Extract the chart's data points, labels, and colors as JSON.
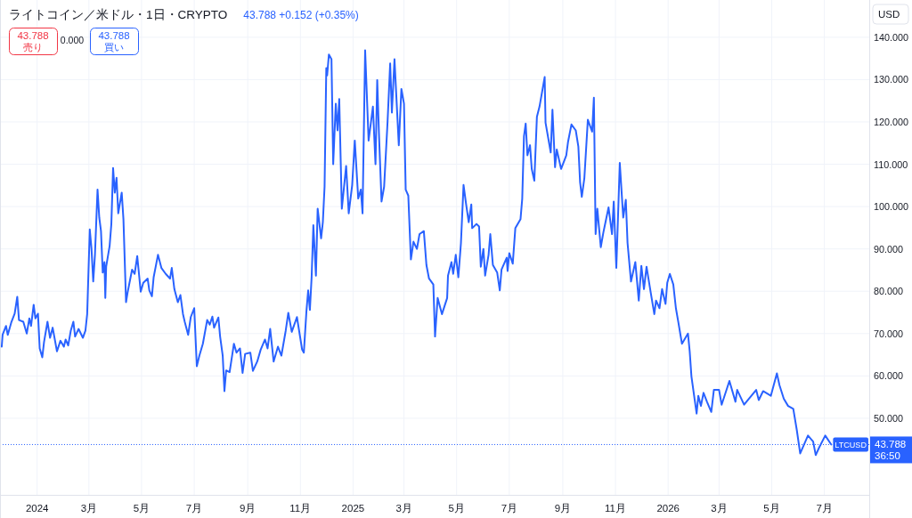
{
  "chart_data": {
    "type": "line",
    "title": "ライトコイン／米ドル・1日・CRYPTO",
    "subtitle": "43.788 +0.152 (+0.35%)",
    "ylabel": "USD",
    "annotations": [
      "43.788",
      "売り",
      "0.000",
      "43.788",
      "買い",
      "36:50"
    ],
    "x": [
      "2023-11-21",
      "2023-11-22",
      "2023-11-26",
      "2023-11-28",
      "2023-12-02",
      "2023-12-06",
      "2023-12-09",
      "2023-12-11",
      "2023-12-16",
      "2023-12-20",
      "2023-12-23",
      "2023-12-25",
      "2023-12-28",
      "2023-12-30",
      "2024-01-02",
      "2024-01-04",
      "2024-01-07",
      "2024-01-09",
      "2024-01-13",
      "2024-01-16",
      "2024-01-19",
      "2024-01-24",
      "2024-01-28",
      "2024-02-01",
      "2024-02-03",
      "2024-02-06",
      "2024-02-09",
      "2024-02-12",
      "2024-02-14",
      "2024-02-18",
      "2024-02-23",
      "2024-02-26",
      "2024-02-28",
      "2024-03-02",
      "2024-03-04",
      "2024-03-06",
      "2024-03-08",
      "2024-03-11",
      "2024-03-13",
      "2024-03-15",
      "2024-03-17",
      "2024-03-19",
      "2024-03-20",
      "2024-03-21",
      "2024-03-25",
      "2024-03-27",
      "2024-03-29",
      "2024-03-31",
      "2024-04-02",
      "2024-04-04",
      "2024-04-08",
      "2024-04-10",
      "2024-04-13",
      "2024-04-15",
      "2024-04-20",
      "2024-04-23",
      "2024-04-26",
      "2024-04-30",
      "2024-05-03",
      "2024-05-08",
      "2024-05-10",
      "2024-05-13",
      "2024-05-15",
      "2024-05-20",
      "2024-05-24",
      "2024-05-29",
      "2024-06-03",
      "2024-06-05",
      "2024-06-08",
      "2024-06-12",
      "2024-06-15",
      "2024-06-18",
      "2024-06-20",
      "2024-06-24",
      "2024-06-27",
      "2024-07-01",
      "2024-07-04",
      "2024-07-07",
      "2024-07-11",
      "2024-07-16",
      "2024-07-19",
      "2024-07-22",
      "2024-07-24",
      "2024-07-29",
      "2024-07-31",
      "2024-08-03",
      "2024-08-05",
      "2024-08-07",
      "2024-08-11",
      "2024-08-16",
      "2024-08-19",
      "2024-08-23",
      "2024-08-26",
      "2024-08-29",
      "2024-09-04",
      "2024-09-07",
      "2024-09-12",
      "2024-09-16",
      "2024-09-21",
      "2024-09-24",
      "2024-09-27",
      "2024-10-01",
      "2024-10-06",
      "2024-10-10",
      "2024-10-15",
      "2024-10-18",
      "2024-10-22",
      "2024-10-28",
      "2024-11-03",
      "2024-11-05",
      "2024-11-08",
      "2024-11-10",
      "2024-11-12",
      "2024-11-14",
      "2024-11-16",
      "2024-11-19",
      "2024-11-21",
      "2024-11-25",
      "2024-11-27",
      "2024-11-29",
      "2024-12-01",
      "2024-12-02",
      "2024-12-04",
      "2024-12-07",
      "2024-12-09",
      "2024-12-12",
      "2024-12-14",
      "2024-12-16",
      "2024-12-19",
      "2024-12-24",
      "2024-12-27",
      "2024-12-31",
      "2025-01-03",
      "2025-01-07",
      "2025-01-10",
      "2025-01-12",
      "2025-01-15",
      "2025-01-19",
      "2025-01-21",
      "2025-01-24",
      "2025-01-27",
      "2025-01-29",
      "2025-01-31",
      "2025-02-03",
      "2025-02-06",
      "2025-02-10",
      "2025-02-13",
      "2025-02-15",
      "2025-02-18",
      "2025-02-23",
      "2025-02-26",
      "2025-03-01",
      "2025-03-03",
      "2025-03-06",
      "2025-03-09",
      "2025-03-12",
      "2025-03-16",
      "2025-03-19",
      "2025-03-24",
      "2025-03-27",
      "2025-03-30",
      "2025-04-04",
      "2025-04-06",
      "2025-04-09",
      "2025-04-14",
      "2025-04-20",
      "2025-04-21",
      "2025-04-25",
      "2025-04-27",
      "2025-04-30",
      "2025-05-03",
      "2025-05-06",
      "2025-05-09",
      "2025-05-12",
      "2025-05-15",
      "2025-05-18",
      "2025-05-19",
      "2025-05-24",
      "2025-05-27",
      "2025-05-29",
      "2025-06-01",
      "2025-06-03",
      "2025-06-07",
      "2025-06-09",
      "2025-06-12",
      "2025-06-17",
      "2025-06-20",
      "2025-06-22",
      "2025-06-28",
      "2025-06-29",
      "2025-07-01",
      "2025-07-05",
      "2025-07-08",
      "2025-07-14",
      "2025-07-16",
      "2025-07-18",
      "2025-07-20",
      "2025-07-22",
      "2025-07-25",
      "2025-07-27",
      "2025-07-30",
      "2025-08-02",
      "2025-08-05",
      "2025-08-11",
      "2025-08-12",
      "2025-08-18",
      "2025-08-20",
      "2025-08-23",
      "2025-08-25",
      "2025-08-30",
      "2025-09-05",
      "2025-09-07",
      "2025-09-11",
      "2025-09-16",
      "2025-09-19",
      "2025-09-21",
      "2025-09-23",
      "2025-09-26",
      "2025-09-30",
      "2025-10-05",
      "2025-10-07",
      "2025-10-09",
      "2025-10-11",
      "2025-10-15",
      "2025-10-18",
      "2025-10-24",
      "2025-10-28",
      "2025-10-30",
      "2025-11-02",
      "2025-11-06",
      "2025-11-10",
      "2025-11-13",
      "2025-11-15",
      "2025-11-19",
      "2025-11-24",
      "2025-11-28",
      "2025-12-01",
      "2025-12-04",
      "2025-12-07",
      "2025-12-12",
      "2025-12-16",
      "2025-12-18",
      "2025-12-22",
      "2025-12-25",
      "2025-12-29",
      "2025-12-31",
      "2026-01-03",
      "2026-01-07",
      "2026-01-10",
      "2026-01-13",
      "2026-01-17",
      "2026-01-24",
      "2026-01-26",
      "2026-01-28",
      "2026-02-03",
      "2026-02-05",
      "2026-02-08",
      "2026-02-11",
      "2026-02-15",
      "2026-02-20",
      "2026-02-23",
      "2026-03-01",
      "2026-03-04",
      "2026-03-13",
      "2026-03-20",
      "2026-03-22",
      "2026-03-30",
      "2026-04-13",
      "2026-04-16",
      "2026-04-21",
      "2026-04-30",
      "2026-05-07",
      "2026-05-10",
      "2026-05-15",
      "2026-05-20",
      "2026-05-26",
      "2026-05-30",
      "2026-06-03",
      "2026-06-12",
      "2026-06-18",
      "2026-06-21",
      "2026-06-25",
      "2026-07-02",
      "2026-07-09"
    ],
    "series": [
      {
        "name": "LTCUSD",
        "color": "#2962ff",
        "values": [
          66.9,
          69.7,
          71.8,
          69.7,
          72.6,
          74.7,
          78.7,
          73.2,
          72.8,
          70.0,
          73.6,
          71.8,
          76.8,
          73.6,
          74.7,
          66.5,
          64.4,
          68.0,
          72.8,
          69.0,
          71.4,
          65.8,
          68.3,
          66.9,
          68.6,
          67.2,
          70.7,
          72.8,
          69.3,
          71.1,
          69.0,
          70.7,
          74.6,
          94.6,
          90.0,
          82.3,
          88.6,
          104.0,
          97.4,
          94.2,
          84.4,
          86.9,
          78.4,
          85.8,
          90.7,
          95.9,
          109.1,
          103.3,
          106.8,
          98.4,
          103.3,
          97.0,
          77.4,
          79.9,
          85.1,
          84.1,
          88.3,
          79.9,
          82.0,
          83.0,
          80.2,
          78.8,
          83.3,
          88.6,
          85.5,
          84.1,
          83.0,
          85.5,
          80.5,
          77.4,
          79.1,
          74.6,
          72.8,
          69.7,
          73.9,
          76.0,
          62.3,
          64.8,
          67.6,
          73.2,
          72.1,
          74.0,
          71.4,
          73.8,
          69.3,
          64.8,
          56.4,
          61.3,
          60.9,
          67.6,
          65.5,
          66.5,
          60.7,
          65.2,
          65.5,
          61.2,
          63.4,
          66.2,
          68.6,
          66.5,
          71.1,
          63.4,
          66.9,
          64.8,
          70.7,
          74.9,
          70.4,
          73.9,
          66.2,
          65.5,
          75.3,
          80.2,
          75.6,
          83.3,
          95.6,
          83.7,
          99.5,
          92.5,
          96.3,
          104.7,
          132.7,
          131.0,
          135.9,
          134.8,
          110.0,
          124.3,
          118.0,
          125.4,
          99.5,
          109.6,
          98.4,
          105.1,
          115.6,
          101.9,
          104.0,
          98.4,
          136.9,
          115.6,
          118.7,
          123.6,
          110.0,
          129.9,
          117.3,
          101.2,
          104.7,
          120.1,
          133.8,
          122.2,
          134.8,
          114.5,
          127.8,
          124.3,
          104.0,
          102.6,
          87.5,
          91.7,
          90.0,
          93.5,
          94.2,
          86.2,
          83.0,
          81.6,
          69.3,
          78.4,
          74.6,
          78.4,
          83.7,
          86.9,
          84.1,
          88.6,
          83.3,
          91.4,
          105.1,
          100.5,
          96.3,
          100.5,
          94.9,
          95.9,
          95.3,
          85.8,
          90.0,
          83.7,
          88.6,
          93.5,
          86.2,
          84.4,
          80.2,
          85.1,
          87.9,
          84.8,
          89.0,
          86.5,
          94.9,
          97.0,
          101.9,
          116.6,
          119.6,
          112.1,
          114.5,
          108.9,
          106.1,
          121.2,
          123.6,
          130.6,
          119.8,
          112.8,
          122.9,
          109.3,
          113.5,
          108.9,
          112.1,
          115.2,
          119.4,
          118.0,
          114.2,
          105.8,
          102.3,
          106.8,
          120.5,
          117.7,
          125.7,
          93.5,
          99.5,
          90.4,
          93.9,
          99.8,
          93.5,
          101.2,
          85.5,
          110.3,
          97.4,
          101.6,
          91.4,
          82.3,
          86.9,
          77.8,
          86.0,
          80.5,
          85.8,
          79.5,
          74.6,
          77.8,
          76.0,
          80.5,
          77.0,
          82.0,
          84.1,
          81.6,
          76.0,
          72.5,
          67.6,
          70.0,
          65.8,
          59.9,
          51.1,
          55.3,
          52.9,
          56.0,
          53.9,
          51.5,
          56.7,
          56.7,
          53.2,
          58.8,
          53.9,
          56.7,
          53.2,
          56.7,
          54.3,
          56.4,
          55.3,
          60.6,
          57.8,
          54.6,
          52.9,
          52.2,
          47.3,
          41.7,
          45.9,
          44.5,
          41.3,
          43.1,
          45.9,
          43.788
        ]
      }
    ],
    "xlim": [
      "2023-11-19",
      "2026-08-22"
    ],
    "ylim": [
      31.9,
      148.8
    ],
    "xticks": [
      {
        "value": "2024-01-01",
        "label": "2024"
      },
      {
        "value": "2024-03-01",
        "label": "3月"
      },
      {
        "value": "2024-05-01",
        "label": "5月"
      },
      {
        "value": "2024-07-01",
        "label": "7月"
      },
      {
        "value": "2024-09-01",
        "label": "9月"
      },
      {
        "value": "2024-11-01",
        "label": "11月"
      },
      {
        "value": "2025-01-01",
        "label": "2025"
      },
      {
        "value": "2025-03-01",
        "label": "3月"
      },
      {
        "value": "2025-05-01",
        "label": "5月"
      },
      {
        "value": "2025-07-01",
        "label": "7月"
      },
      {
        "value": "2025-09-01",
        "label": "9月"
      },
      {
        "value": "2025-11-01",
        "label": "11月"
      },
      {
        "value": "2026-01-01",
        "label": "2026"
      },
      {
        "value": "2026-03-01",
        "label": "3月"
      },
      {
        "value": "2026-05-01",
        "label": "5月"
      },
      {
        "value": "2026-07-01",
        "label": "7月"
      }
    ],
    "yticks": [
      {
        "value": 50,
        "label": "50.000"
      },
      {
        "value": 60,
        "label": "60.000"
      },
      {
        "value": 70,
        "label": "70.000"
      },
      {
        "value": 80,
        "label": "80.000"
      },
      {
        "value": 90,
        "label": "90.000"
      },
      {
        "value": 100,
        "label": "100.000"
      },
      {
        "value": 110,
        "label": "110.000"
      },
      {
        "value": 120,
        "label": "120.000"
      },
      {
        "value": 130,
        "label": "130.000"
      },
      {
        "value": 140,
        "label": "140.000"
      }
    ],
    "grid": true,
    "ref_lines": [
      {
        "axis": "y",
        "value": 43.788,
        "label": "43.788",
        "color": "#2962ff",
        "line_style": "dotted"
      }
    ]
  }
}
